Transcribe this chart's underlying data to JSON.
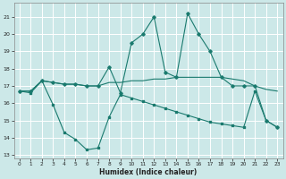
{
  "xlabel": "Humidex (Indice chaleur)",
  "background_color": "#cce8e8",
  "grid_color": "#ffffff",
  "line_color": "#1a7a6e",
  "xlim": [
    -0.5,
    23.5
  ],
  "ylim": [
    12.8,
    21.8
  ],
  "yticks": [
    13,
    14,
    15,
    16,
    17,
    18,
    19,
    20,
    21
  ],
  "xticks": [
    0,
    1,
    2,
    3,
    4,
    5,
    6,
    7,
    8,
    9,
    10,
    11,
    12,
    13,
    14,
    15,
    16,
    17,
    18,
    19,
    20,
    21,
    22,
    23
  ],
  "line1_x": [
    0,
    1,
    2,
    3,
    4,
    5,
    6,
    7,
    8,
    9,
    10,
    11,
    12,
    13,
    14,
    15,
    16,
    17,
    18,
    19,
    20,
    21,
    22,
    23
  ],
  "line1_y": [
    16.7,
    16.7,
    17.3,
    17.2,
    17.1,
    17.1,
    17.0,
    17.0,
    17.2,
    17.2,
    17.3,
    17.3,
    17.4,
    17.4,
    17.5,
    17.5,
    17.5,
    17.5,
    17.5,
    17.4,
    17.3,
    17.0,
    16.8,
    16.7
  ],
  "line2_x": [
    0,
    1,
    2,
    3,
    4,
    5,
    6,
    7,
    8,
    9,
    10,
    11,
    12,
    13,
    14,
    15,
    16,
    17,
    18,
    19,
    20,
    21,
    22,
    23
  ],
  "line2_y": [
    16.7,
    16.7,
    17.3,
    17.2,
    17.1,
    17.1,
    17.0,
    17.0,
    18.1,
    16.6,
    19.5,
    20.0,
    21.0,
    17.8,
    17.5,
    21.2,
    20.0,
    19.0,
    17.5,
    17.0,
    17.0,
    17.0,
    15.0,
    14.6
  ],
  "line3_x": [
    0,
    1,
    2,
    3,
    4,
    5,
    6,
    7,
    8,
    9,
    10,
    11,
    12,
    13,
    14,
    15,
    16,
    17,
    18,
    19,
    20,
    21,
    22,
    23
  ],
  "line3_y": [
    16.7,
    16.6,
    17.3,
    15.9,
    14.3,
    13.9,
    13.3,
    13.4,
    15.2,
    16.5,
    16.3,
    16.1,
    15.9,
    15.7,
    15.5,
    15.3,
    15.1,
    14.9,
    14.8,
    14.7,
    14.6,
    16.7,
    15.0,
    14.6
  ]
}
